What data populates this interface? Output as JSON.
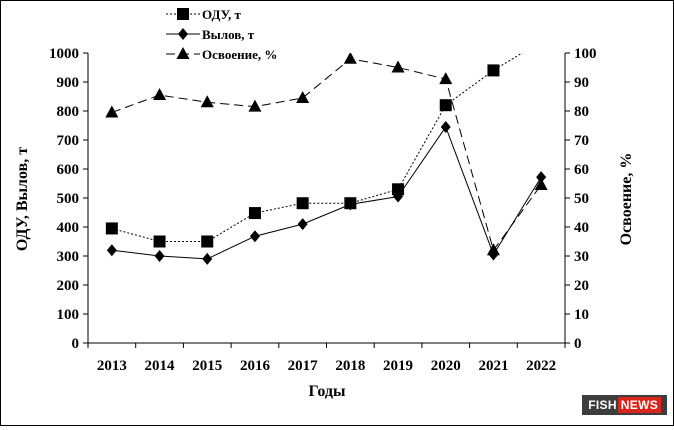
{
  "chart_data": {
    "type": "line",
    "categories": [
      "2013",
      "2014",
      "2015",
      "2016",
      "2017",
      "2018",
      "2019",
      "2020",
      "2021",
      "2022"
    ],
    "xlabel": "Годы",
    "ylabel_left": "ОДУ, Вылов, т",
    "ylabel_right": "Освоение, %",
    "ylim_left": [
      0,
      1000
    ],
    "ylim_right": [
      0,
      100
    ],
    "yticks_left": [
      "0",
      "100",
      "200",
      "300",
      "400",
      "500",
      "600",
      "700",
      "800",
      "900",
      "1000"
    ],
    "yticks_right": [
      "0",
      "10",
      "20",
      "30",
      "40",
      "50",
      "60",
      "70",
      "80",
      "90",
      "100"
    ],
    "legend_position": "top-center",
    "grid": false,
    "series": [
      {
        "name": "ОДУ, т",
        "axis": "left",
        "marker": "square",
        "line": "dotted",
        "values": [
          395,
          350,
          350,
          448,
          482,
          482,
          530,
          820,
          940,
          1040
        ]
      },
      {
        "name": "Вылов, т",
        "axis": "left",
        "marker": "diamond",
        "line": "solid",
        "values": [
          320,
          300,
          290,
          368,
          410,
          478,
          505,
          745,
          305,
          572
        ]
      },
      {
        "name": "Освоение, %",
        "axis": "right",
        "marker": "triangle",
        "line": "dashed",
        "values": [
          79.5,
          85.5,
          83,
          81.5,
          84.5,
          98,
          95,
          91,
          32,
          54.5
        ]
      }
    ]
  },
  "watermark": {
    "part1": "FISH",
    "part2": "NEWS"
  }
}
